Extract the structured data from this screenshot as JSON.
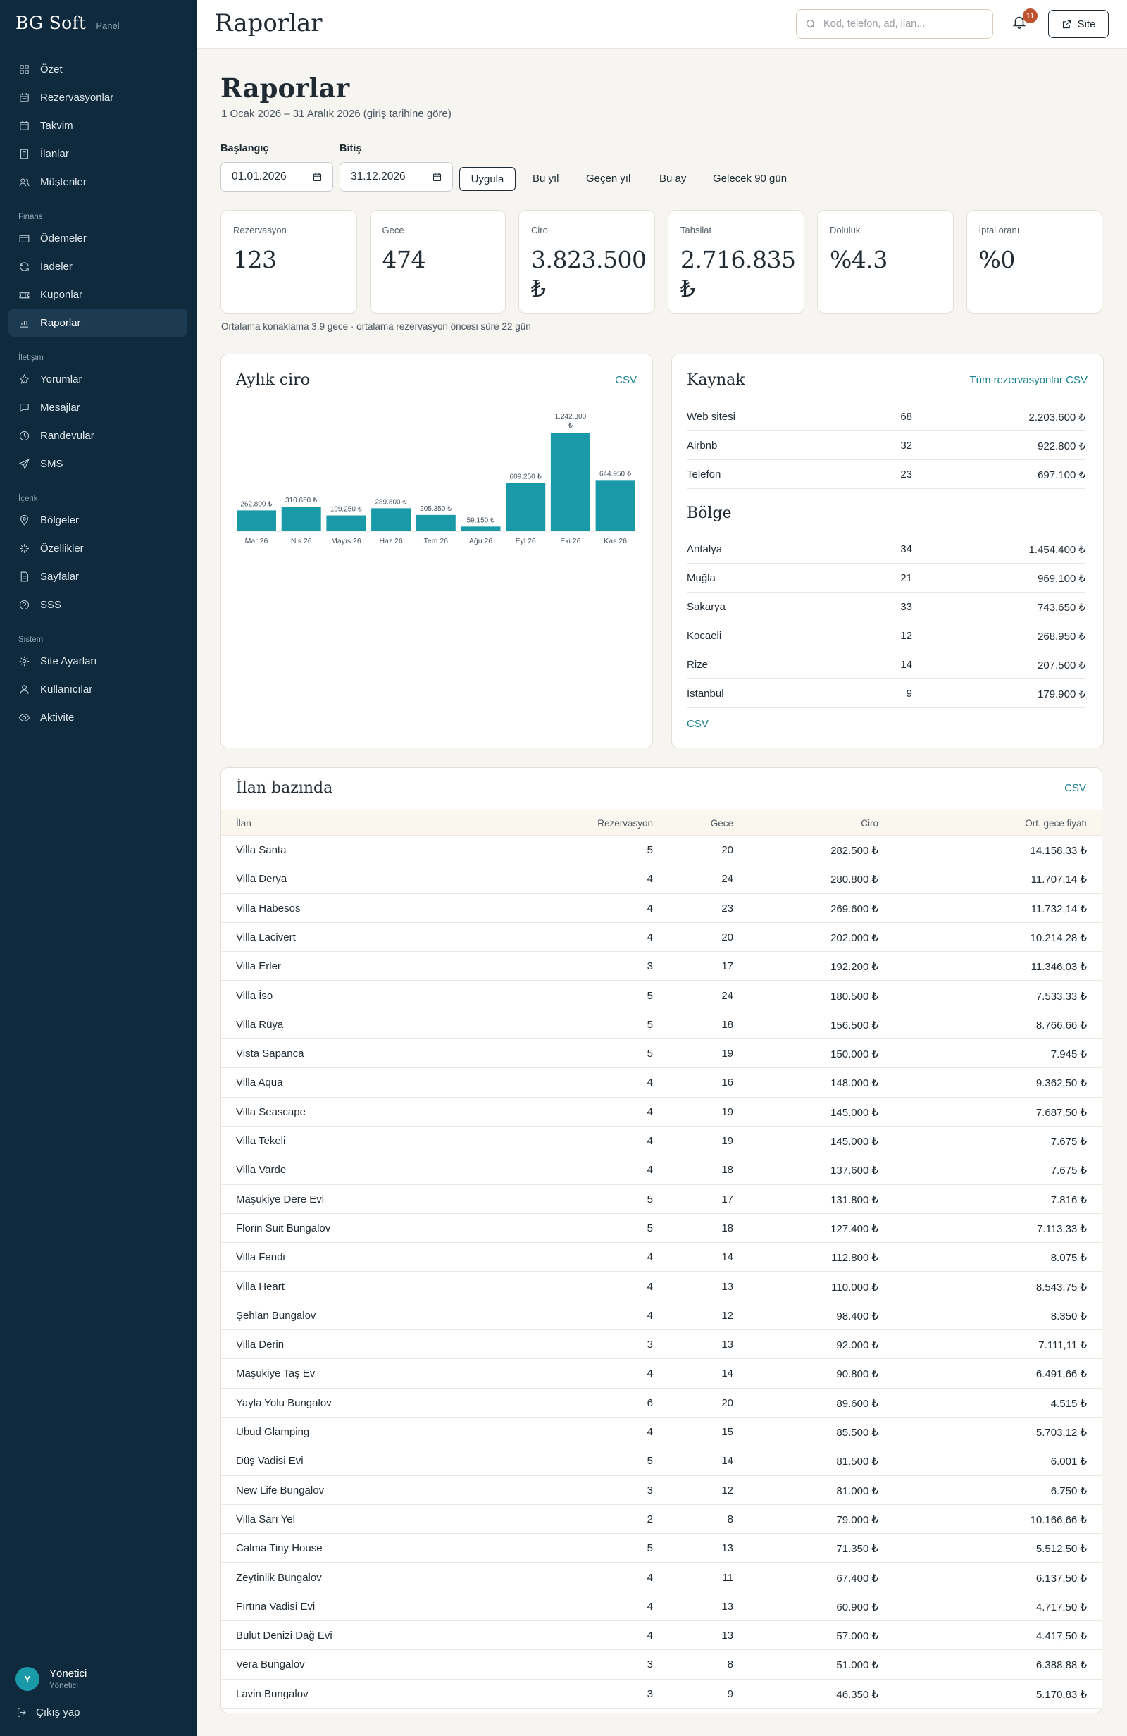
{
  "brand": {
    "name": "BG Soft",
    "sub": "Panel"
  },
  "nav": {
    "main": [
      {
        "label": "Özet",
        "icon": "grid-icon"
      },
      {
        "label": "Rezervasyonlar",
        "icon": "calendar-list-icon"
      },
      {
        "label": "Takvim",
        "icon": "calendar-icon"
      },
      {
        "label": "İlanlar",
        "icon": "listing-icon"
      },
      {
        "label": "Müşteriler",
        "icon": "users-icon"
      }
    ],
    "sections": [
      {
        "title": "Finans",
        "items": [
          {
            "label": "Ödemeler",
            "icon": "card-icon"
          },
          {
            "label": "İadeler",
            "icon": "refresh-icon"
          },
          {
            "label": "Kuponlar",
            "icon": "ticket-icon"
          },
          {
            "label": "Raporlar",
            "icon": "chart-icon",
            "active": true
          }
        ]
      },
      {
        "title": "İletişim",
        "items": [
          {
            "label": "Yorumlar",
            "icon": "star-icon"
          },
          {
            "label": "Mesajlar",
            "icon": "message-icon"
          },
          {
            "label": "Randevular",
            "icon": "clock-icon"
          },
          {
            "label": "SMS",
            "icon": "send-icon"
          }
        ]
      },
      {
        "title": "İçerik",
        "items": [
          {
            "label": "Bölgeler",
            "icon": "pin-icon"
          },
          {
            "label": "Özellikler",
            "icon": "sparkle-icon"
          },
          {
            "label": "Sayfalar",
            "icon": "page-icon"
          },
          {
            "label": "SSS",
            "icon": "help-icon"
          }
        ]
      },
      {
        "title": "Sistem",
        "items": [
          {
            "label": "Site Ayarları",
            "icon": "gear-icon"
          },
          {
            "label": "Kullanıcılar",
            "icon": "user-icon"
          },
          {
            "label": "Aktivite",
            "icon": "eye-icon"
          }
        ]
      }
    ]
  },
  "user": {
    "initial": "Y",
    "name": "Yönetici",
    "role": "Yönetici",
    "logout": "Çıkış yap"
  },
  "header": {
    "title": "Raporlar",
    "search_placeholder": "Kod, telefon, ad, ilan...",
    "notif_count": "11",
    "site_label": "Site"
  },
  "page": {
    "title": "Raporlar",
    "subtitle": "1 Ocak 2026 – 31 Aralık 2026 (giriş tarihine göre)",
    "start_label": "Başlangıç",
    "start_value": "01.01.2026",
    "end_label": "Bitiş",
    "end_value": "31.12.2026",
    "apply_label": "Uygula",
    "quick": [
      "Bu yıl",
      "Geçen yıl",
      "Bu ay",
      "Gelecek 90 gün"
    ]
  },
  "kpis": [
    {
      "label": "Rezervasyon",
      "value": "123"
    },
    {
      "label": "Gece",
      "value": "474"
    },
    {
      "label": "Ciro",
      "value": "3.823.500 ₺"
    },
    {
      "label": "Tahsilat",
      "value": "2.716.835 ₺"
    },
    {
      "label": "Doluluk",
      "value": "%4.3"
    },
    {
      "label": "İptal oranı",
      "value": "%0"
    }
  ],
  "kpi_note": "Ortalama konaklama 3,9 gece · ortalama rezervasyon öncesi süre 22 gün",
  "monthly": {
    "title": "Aylık ciro",
    "csv": "CSV"
  },
  "chart_data": {
    "type": "bar",
    "categories": [
      "Mar 26",
      "Nis 26",
      "Mayıs 26",
      "Haz 26",
      "Tem 26",
      "Ağu 26",
      "Eyl 26",
      "Eki 26",
      "Kas 26"
    ],
    "values": [
      262800,
      310650,
      199250,
      289800,
      205350,
      59150,
      609250,
      1242300,
      644950
    ],
    "value_labels": [
      "262.800 ₺",
      "310.650 ₺",
      "199.250 ₺",
      "289.800 ₺",
      "205.350 ₺",
      "59.150 ₺",
      "609.250 ₺",
      "1.242.300 ₺",
      "644.950 ₺"
    ],
    "title": "Aylık ciro",
    "color": "#1a9aa8"
  },
  "source": {
    "title": "Kaynak",
    "link": "Tüm rezervasyonlar CSV",
    "rows": [
      {
        "name": "Web sitesi",
        "count": "68",
        "amount": "2.203.600 ₺"
      },
      {
        "name": "Airbnb",
        "count": "32",
        "amount": "922.800 ₺"
      },
      {
        "name": "Telefon",
        "count": "23",
        "amount": "697.100 ₺"
      }
    ]
  },
  "region": {
    "title": "Bölge",
    "csv": "CSV",
    "rows": [
      {
        "name": "Antalya",
        "count": "34",
        "amount": "1.454.400 ₺"
      },
      {
        "name": "Muğla",
        "count": "21",
        "amount": "969.100 ₺"
      },
      {
        "name": "Sakarya",
        "count": "33",
        "amount": "743.650 ₺"
      },
      {
        "name": "Kocaeli",
        "count": "12",
        "amount": "268.950 ₺"
      },
      {
        "name": "Rize",
        "count": "14",
        "amount": "207.500 ₺"
      },
      {
        "name": "İstanbul",
        "count": "9",
        "amount": "179.900 ₺"
      }
    ]
  },
  "listings": {
    "title": "İlan bazında",
    "csv": "CSV",
    "columns": [
      "İlan",
      "Rezervasyon",
      "Gece",
      "Ciro",
      "Ort. gece fiyatı"
    ],
    "rows": [
      [
        "Villa Santa",
        "5",
        "20",
        "282.500 ₺",
        "14.158,33 ₺"
      ],
      [
        "Villa Derya",
        "4",
        "24",
        "280.800 ₺",
        "11.707,14 ₺"
      ],
      [
        "Villa Habesos",
        "4",
        "23",
        "269.600 ₺",
        "11.732,14 ₺"
      ],
      [
        "Villa Lacivert",
        "4",
        "20",
        "202.000 ₺",
        "10.214,28 ₺"
      ],
      [
        "Villa Erler",
        "3",
        "17",
        "192.200 ₺",
        "11.346,03 ₺"
      ],
      [
        "Villa İso",
        "5",
        "24",
        "180.500 ₺",
        "7.533,33 ₺"
      ],
      [
        "Villa Rüya",
        "5",
        "18",
        "156.500 ₺",
        "8.766,66 ₺"
      ],
      [
        "Vista Sapanca",
        "5",
        "19",
        "150.000 ₺",
        "7.945 ₺"
      ],
      [
        "Villa Aqua",
        "4",
        "16",
        "148.000 ₺",
        "9.362,50 ₺"
      ],
      [
        "Villa Seascape",
        "4",
        "19",
        "145.000 ₺",
        "7.687,50 ₺"
      ],
      [
        "Villa Tekeli",
        "4",
        "19",
        "145.000 ₺",
        "7.675 ₺"
      ],
      [
        "Villa Varde",
        "4",
        "18",
        "137.600 ₺",
        "7.675 ₺"
      ],
      [
        "Maşukiye Dere Evi",
        "5",
        "17",
        "131.800 ₺",
        "7.816 ₺"
      ],
      [
        "Florin Suit Bungalov",
        "5",
        "18",
        "127.400 ₺",
        "7.113,33 ₺"
      ],
      [
        "Villa Fendi",
        "4",
        "14",
        "112.800 ₺",
        "8.075 ₺"
      ],
      [
        "Villa Heart",
        "4",
        "13",
        "110.000 ₺",
        "8.543,75 ₺"
      ],
      [
        "Şehlan Bungalov",
        "4",
        "12",
        "98.400 ₺",
        "8.350 ₺"
      ],
      [
        "Villa Derin",
        "3",
        "13",
        "92.000 ₺",
        "7.111,11 ₺"
      ],
      [
        "Maşukiye Taş Ev",
        "4",
        "14",
        "90.800 ₺",
        "6.491,66 ₺"
      ],
      [
        "Yayla Yolu Bungalov",
        "6",
        "20",
        "89.600 ₺",
        "4.515 ₺"
      ],
      [
        "Ubud Glamping",
        "4",
        "15",
        "85.500 ₺",
        "5.703,12 ₺"
      ],
      [
        "Düş Vadisi Evi",
        "5",
        "14",
        "81.500 ₺",
        "6.001 ₺"
      ],
      [
        "New Life Bungalov",
        "3",
        "12",
        "81.000 ₺",
        "6.750 ₺"
      ],
      [
        "Villa Sarı Yel",
        "2",
        "8",
        "79.000 ₺",
        "10.166,66 ₺"
      ],
      [
        "Calma Tiny House",
        "5",
        "13",
        "71.350 ₺",
        "5.512,50 ₺"
      ],
      [
        "Zeytinlik Bungalov",
        "4",
        "11",
        "67.400 ₺",
        "6.137,50 ₺"
      ],
      [
        "Fırtına Vadisi Evi",
        "4",
        "13",
        "60.900 ₺",
        "4.717,50 ₺"
      ],
      [
        "Bulut Denizi Dağ Evi",
        "4",
        "13",
        "57.000 ₺",
        "4.417,50 ₺"
      ],
      [
        "Vera Bungalov",
        "3",
        "8",
        "51.000 ₺",
        "6.388,88 ₺"
      ],
      [
        "Lavin Bungalov",
        "3",
        "9",
        "46.350 ₺",
        "5.170,83 ₺"
      ]
    ]
  }
}
